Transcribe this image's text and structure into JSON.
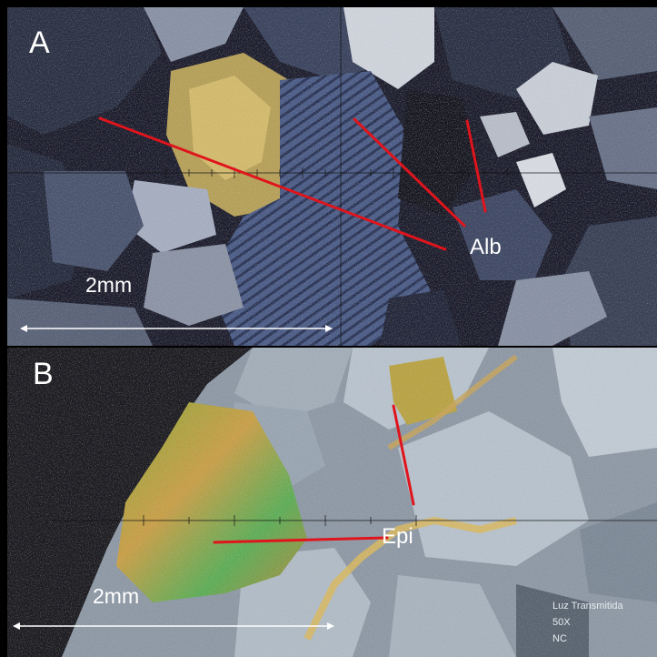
{
  "panel_a": {
    "letter": "A",
    "mineral_label": "Alb",
    "scale_label": "2mm"
  },
  "panel_b": {
    "letter": "B",
    "mineral_label": "Epi",
    "scale_label": "2mm",
    "info_lines": [
      "Luz Transmitida",
      "50X",
      "NC"
    ]
  },
  "colors": {
    "arrow": "#e0141c",
    "scale_bar": "#ffffff",
    "frame": "#000000"
  }
}
